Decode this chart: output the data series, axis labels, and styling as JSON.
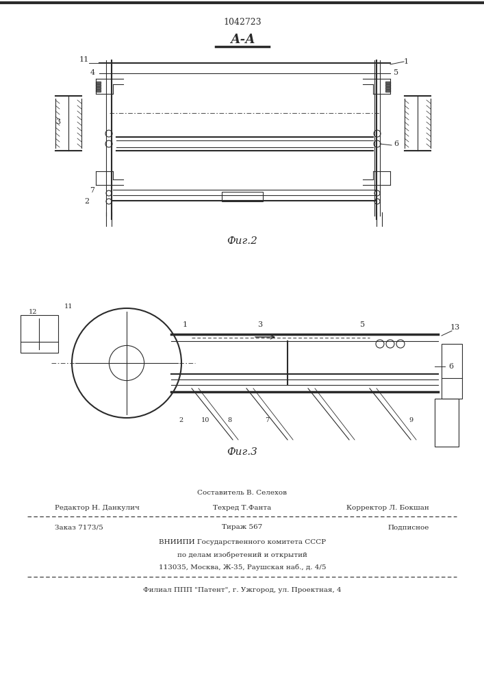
{
  "patent_number": "1042723",
  "section_label": "А-А",
  "fig2_label": "Фиг.2",
  "fig3_label": "Фиг.3",
  "bg_color": "#ffffff",
  "line_color": "#2a2a2a",
  "footer_line1_top": "Составитель В. Селехов",
  "footer_line1_left": "Редактор Н. Данкулич",
  "footer_line1_center": "Техред Т.Фанта",
  "footer_line1_right": "Корректор Л. Бокшан",
  "footer_line2_left": "Заказ 7173/5",
  "footer_line2_center": "Тираж 567",
  "footer_line2_right": "Подписное",
  "footer_line3": "ВНИИПИ Государственного комитета СССР",
  "footer_line4": "по делам изобретений и открытий",
  "footer_line5": "113035, Москва, Ж-35, Раушская наб., д. 4/5",
  "footer_line6": "Филиал ППП \"Патент\", г. Ужгород, ул. Проектная, 4"
}
